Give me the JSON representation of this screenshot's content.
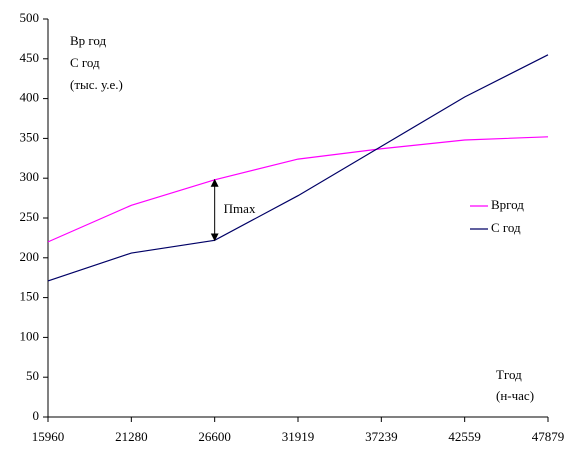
{
  "chart_data": {
    "type": "line",
    "y_label_lines": [
      "Вр год",
      "С год",
      "(тыс. у.е.)"
    ],
    "x_label_lines": [
      "Тгод",
      "(н-час)"
    ],
    "annotation": "Пmax",
    "x": [
      15960,
      21280,
      26600,
      31919,
      37239,
      42559,
      47879
    ],
    "series": [
      {
        "name": "Вргод",
        "color": "#ff00ff",
        "values": [
          220,
          266,
          298,
          324,
          337,
          348,
          352
        ]
      },
      {
        "name": "С год",
        "color": "#000066",
        "values": [
          171,
          206,
          222,
          278,
          340,
          402,
          455
        ]
      }
    ],
    "xlim": [
      15960,
      47879
    ],
    "xticks": [
      15960,
      21280,
      26600,
      31919,
      37239,
      42559,
      47879
    ],
    "ylim": [
      0,
      500
    ],
    "yticks": [
      0,
      50,
      100,
      150,
      200,
      250,
      300,
      350,
      400,
      450,
      500
    ],
    "grid": false,
    "legend": "right"
  }
}
